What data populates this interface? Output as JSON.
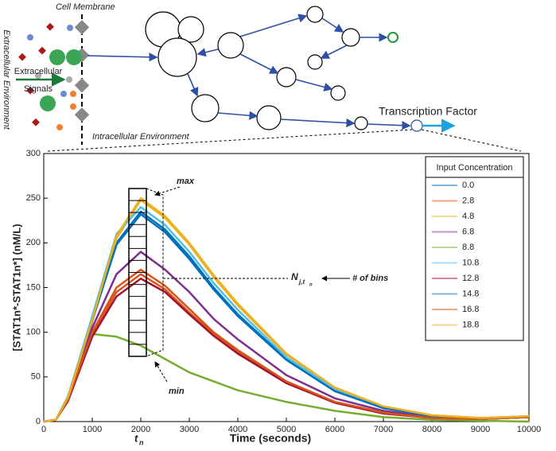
{
  "diagram": {
    "cell_membrane": "Cell Membrane",
    "extracellular_environment": "Extracellular Environment",
    "extracellular_signals_1": "Extracellular",
    "extracellular_signals_2": "Signals",
    "intracellular_environment": "Intracellular Environment",
    "transcription_factor": "Transcription Factor"
  },
  "chart_data": {
    "type": "line",
    "x_label": "Time (seconds)",
    "y_label": "[STAT1n*-STAT1n*] (nM/L)",
    "annotations": {
      "max": "max",
      "min": "min",
      "bins": "# of bins",
      "n_main": "N",
      "n_sub": "j,t",
      "n_subsub": "n",
      "t_main": "t",
      "t_sub": "n"
    },
    "legend_title": "Input Concentration",
    "legend": "upper right",
    "x": [
      0,
      250,
      500,
      1000,
      1500,
      2000,
      2500,
      3000,
      3500,
      4000,
      5000,
      6000,
      7000,
      8000,
      9000,
      10000
    ],
    "xlim": [
      0,
      10000
    ],
    "xticks": [
      0,
      1000,
      2000,
      3000,
      4000,
      5000,
      6000,
      7000,
      8000,
      9000,
      10000
    ],
    "ylim": [
      0,
      300
    ],
    "yticks": [
      0,
      50,
      100,
      150,
      200,
      250,
      300
    ],
    "series": [
      {
        "name": "0.0",
        "color": "#0072bd",
        "values": [
          0,
          2,
          28,
          115,
          200,
          235,
          215,
          185,
          150,
          120,
          70,
          35,
          15,
          6,
          3,
          5
        ]
      },
      {
        "name": "2.8",
        "color": "#d95319",
        "values": [
          0,
          2,
          24,
          98,
          145,
          165,
          148,
          122,
          98,
          78,
          44,
          22,
          10,
          4,
          3,
          5
        ]
      },
      {
        "name": "4.8",
        "color": "#edb120",
        "values": [
          0,
          2,
          27,
          112,
          205,
          248,
          228,
          198,
          162,
          130,
          75,
          38,
          17,
          7,
          4,
          6
        ]
      },
      {
        "name": "6.8",
        "color": "#7e2f8e",
        "values": [
          0,
          2,
          26,
          105,
          165,
          190,
          170,
          145,
          115,
          92,
          52,
          26,
          12,
          5,
          3,
          5
        ]
      },
      {
        "name": "8.8",
        "color": "#77ac30",
        "values": [
          0,
          2,
          25,
          98,
          95,
          85,
          70,
          55,
          45,
          35,
          22,
          12,
          5,
          2,
          1,
          0
        ]
      },
      {
        "name": "10.8",
        "color": "#4dbeee",
        "values": [
          0,
          2,
          28,
          118,
          210,
          240,
          220,
          190,
          155,
          125,
          72,
          36,
          16,
          7,
          4,
          6
        ]
      },
      {
        "name": "12.8",
        "color": "#a2142f",
        "values": [
          0,
          2,
          23,
          95,
          140,
          160,
          145,
          120,
          96,
          76,
          43,
          21,
          9,
          4,
          3,
          5
        ]
      },
      {
        "name": "14.8",
        "color": "#0072bd",
        "values": [
          0,
          2,
          27,
          113,
          198,
          232,
          212,
          182,
          148,
          118,
          69,
          34,
          15,
          6,
          3,
          5
        ]
      },
      {
        "name": "16.8",
        "color": "#d95319",
        "values": [
          0,
          2,
          25,
          100,
          150,
          170,
          152,
          126,
          100,
          80,
          45,
          22,
          10,
          4,
          3,
          5
        ]
      },
      {
        "name": "18.8",
        "color": "#edb120",
        "values": [
          0,
          2,
          27,
          114,
          208,
          250,
          230,
          200,
          164,
          132,
          76,
          38,
          17,
          7,
          4,
          6
        ]
      }
    ]
  }
}
